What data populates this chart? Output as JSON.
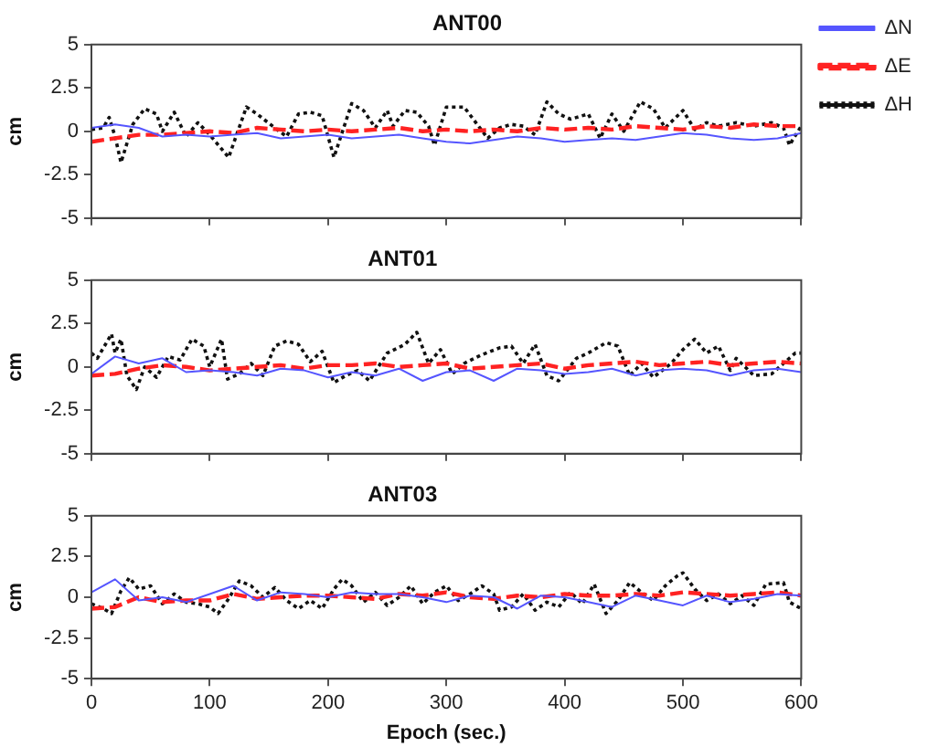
{
  "chart_data": [
    {
      "type": "line",
      "title": "ANT00",
      "ylabel": "cm",
      "xlim": [
        0,
        600
      ],
      "ylim": [
        -5,
        5
      ],
      "xticks": [
        0,
        100,
        200,
        300,
        400,
        500,
        600
      ],
      "yticks": [
        -5,
        -2.5,
        0,
        2.5,
        5
      ],
      "tick_labels": "y",
      "grid": false,
      "legend": "right",
      "marker": "none",
      "x": [
        0,
        20,
        40,
        60,
        80,
        100,
        120,
        140,
        160,
        180,
        200,
        220,
        240,
        260,
        280,
        300,
        320,
        340,
        360,
        380,
        400,
        420,
        440,
        460,
        480,
        500,
        520,
        540,
        560,
        580,
        600
      ],
      "series": [
        {
          "name": "ΔN",
          "color": "#5555ff",
          "line_style": "solid",
          "values": [
            0.2,
            0.4,
            0.2,
            -0.3,
            -0.2,
            -0.3,
            -0.2,
            -0.1,
            -0.4,
            -0.3,
            -0.2,
            -0.4,
            -0.3,
            -0.2,
            -0.4,
            -0.6,
            -0.7,
            -0.5,
            -0.3,
            -0.4,
            -0.6,
            -0.5,
            -0.4,
            -0.5,
            -0.3,
            -0.1,
            -0.2,
            -0.4,
            -0.5,
            -0.4,
            -0.1
          ]
        },
        {
          "name": "ΔE",
          "color": "#ff2222",
          "line_style": "dashed",
          "values": [
            -0.6,
            -0.4,
            -0.2,
            -0.2,
            -0.1,
            0.0,
            -0.1,
            0.2,
            0.1,
            0.0,
            0.1,
            0.0,
            0.1,
            0.2,
            0.0,
            0.1,
            0.0,
            0.1,
            0.0,
            0.2,
            0.1,
            0.2,
            0.1,
            0.3,
            0.2,
            0.1,
            0.3,
            0.2,
            0.4,
            0.3,
            0.3
          ]
        },
        {
          "name": "ΔH",
          "color": "#111111",
          "line_style": "dotted",
          "x": [
            0,
            10,
            15,
            20,
            25,
            35,
            45,
            55,
            60,
            70,
            80,
            90,
            100,
            116,
            131,
            140,
            155,
            165,
            175,
            185,
            195,
            200,
            205,
            220,
            230,
            240,
            250,
            255,
            265,
            275,
            285,
            290,
            300,
            315,
            325,
            335,
            345,
            355,
            365,
            375,
            385,
            395,
            405,
            420,
            430,
            440,
            450,
            464,
            475,
            485,
            500,
            510,
            520,
            530,
            545,
            560,
            575,
            585,
            590,
            600
          ],
          "values": [
            0.1,
            0.2,
            0.8,
            -0.3,
            -1.8,
            0.4,
            1.3,
            1.0,
            0.0,
            1.1,
            -0.3,
            0.5,
            -0.2,
            -1.5,
            1.4,
            1.0,
            0.2,
            -0.3,
            1.0,
            1.1,
            0.9,
            -0.3,
            -1.5,
            1.6,
            1.2,
            0.2,
            1.2,
            0.3,
            1.2,
            1.1,
            0.3,
            -0.8,
            1.4,
            1.4,
            0.5,
            -0.4,
            0.2,
            0.4,
            0.3,
            -0.2,
            1.7,
            1.0,
            0.7,
            1.0,
            -0.4,
            1.0,
            0.0,
            1.7,
            1.3,
            0.2,
            1.2,
            0.1,
            0.5,
            0.3,
            0.5,
            0.3,
            0.5,
            0.2,
            -0.8,
            0.3
          ]
        }
      ]
    },
    {
      "type": "line",
      "title": "ANT01",
      "ylabel": "cm",
      "xlim": [
        0,
        600
      ],
      "ylim": [
        -5,
        5
      ],
      "xticks": [
        0,
        100,
        200,
        300,
        400,
        500,
        600
      ],
      "yticks": [
        -5,
        -2.5,
        0,
        2.5,
        5
      ],
      "tick_labels": "y",
      "grid": false,
      "marker": "none",
      "x": [
        0,
        20,
        40,
        60,
        80,
        100,
        120,
        140,
        160,
        180,
        200,
        220,
        240,
        260,
        280,
        300,
        320,
        340,
        360,
        380,
        400,
        420,
        440,
        460,
        480,
        500,
        520,
        540,
        560,
        580,
        600
      ],
      "series": [
        {
          "color": "#5555ff",
          "line_style": "solid",
          "values": [
            -0.4,
            0.6,
            0.2,
            0.5,
            -0.3,
            -0.2,
            -0.3,
            -0.5,
            -0.1,
            -0.2,
            -0.6,
            -0.3,
            -0.5,
            -0.1,
            -0.8,
            -0.3,
            -0.2,
            -0.8,
            -0.1,
            -0.2,
            -0.4,
            -0.3,
            -0.1,
            -0.5,
            -0.2,
            -0.1,
            -0.2,
            -0.5,
            -0.2,
            -0.1,
            -0.3
          ]
        },
        {
          "color": "#ff2222",
          "line_style": "dashed",
          "values": [
            -0.5,
            -0.4,
            -0.1,
            0.1,
            0.0,
            -0.2,
            -0.1,
            0.0,
            0.1,
            -0.1,
            0.1,
            0.1,
            0.2,
            0.0,
            0.1,
            0.2,
            -0.1,
            0.0,
            0.1,
            0.2,
            -0.1,
            0.1,
            0.2,
            0.3,
            0.1,
            0.2,
            0.3,
            0.1,
            0.2,
            0.3,
            0.2
          ]
        },
        {
          "color": "#111111",
          "line_style": "dotted",
          "x": [
            0,
            5,
            17,
            20,
            25,
            30,
            38,
            45,
            55,
            65,
            75,
            85,
            95,
            100,
            110,
            115,
            125,
            135,
            145,
            155,
            165,
            175,
            185,
            195,
            205,
            215,
            225,
            235,
            250,
            265,
            275,
            285,
            295,
            305,
            315,
            330,
            345,
            355,
            365,
            375,
            385,
            395,
            410,
            420,
            435,
            445,
            455,
            465,
            475,
            490,
            500,
            510,
            520,
            530,
            540,
            545,
            560,
            575,
            585,
            595,
            600
          ],
          "values": [
            0.8,
            0.5,
            1.9,
            0.8,
            1.6,
            -0.5,
            -1.3,
            0.0,
            -0.6,
            0.6,
            0.4,
            1.6,
            1.2,
            0.0,
            1.6,
            -0.7,
            -0.4,
            0.2,
            -0.5,
            1.2,
            1.5,
            1.3,
            0.3,
            0.9,
            -0.9,
            -0.5,
            -0.2,
            -0.8,
            0.8,
            1.3,
            2.0,
            0.2,
            1.0,
            -0.4,
            0.2,
            0.7,
            1.1,
            1.2,
            0.2,
            1.3,
            -0.5,
            -0.8,
            0.5,
            0.8,
            1.4,
            1.2,
            -0.5,
            0.2,
            -0.6,
            0.2,
            1.0,
            1.6,
            0.8,
            1.2,
            -0.2,
            0.5,
            -0.5,
            -0.4,
            0.2,
            0.8,
            0.8
          ]
        }
      ]
    },
    {
      "type": "line",
      "title": "ANT03",
      "xlabel": "Epoch (sec.)",
      "ylabel": "cm",
      "xlim": [
        0,
        600
      ],
      "ylim": [
        -5,
        5
      ],
      "xticks": [
        0,
        100,
        200,
        300,
        400,
        500,
        600
      ],
      "yticks": [
        -5,
        -2.5,
        0,
        2.5,
        5
      ],
      "grid": false,
      "marker": "none",
      "x": [
        0,
        20,
        40,
        60,
        80,
        100,
        120,
        140,
        160,
        180,
        200,
        220,
        240,
        260,
        280,
        300,
        320,
        340,
        360,
        380,
        400,
        420,
        440,
        460,
        480,
        500,
        520,
        540,
        560,
        580,
        600
      ],
      "series": [
        {
          "color": "#5555ff",
          "line_style": "solid",
          "values": [
            0.3,
            1.1,
            -0.2,
            0.0,
            -0.3,
            0.2,
            0.7,
            -0.2,
            0.3,
            0.2,
            0.0,
            0.3,
            0.2,
            0.2,
            0.0,
            -0.3,
            0.1,
            0.0,
            -0.7,
            0.1,
            0.0,
            -0.3,
            -0.6,
            0.1,
            -0.2,
            -0.5,
            0.1,
            -0.3,
            -0.1,
            0.2,
            0.1
          ]
        },
        {
          "color": "#ff2222",
          "line_style": "dashed",
          "values": [
            -0.7,
            -0.6,
            0.0,
            -0.3,
            -0.2,
            -0.2,
            0.2,
            -0.1,
            0.0,
            0.1,
            0.1,
            0.0,
            -0.1,
            0.2,
            0.1,
            0.3,
            0.0,
            -0.1,
            0.1,
            0.0,
            0.2,
            0.1,
            0.1,
            0.2,
            0.1,
            0.3,
            0.2,
            0.1,
            0.2,
            0.3,
            0.1
          ]
        },
        {
          "color": "#111111",
          "line_style": "dotted",
          "x": [
            0,
            10,
            17,
            25,
            32,
            40,
            50,
            60,
            70,
            80,
            90,
            100,
            107,
            115,
            125,
            135,
            145,
            155,
            165,
            175,
            185,
            195,
            205,
            212,
            220,
            230,
            240,
            250,
            260,
            270,
            280,
            290,
            300,
            310,
            320,
            330,
            340,
            345,
            355,
            365,
            375,
            385,
            395,
            405,
            415,
            425,
            435,
            445,
            455,
            465,
            475,
            485,
            495,
            500,
            510,
            520,
            530,
            540,
            550,
            560,
            570,
            585,
            590,
            600
          ],
          "values": [
            -0.4,
            -0.7,
            -1.0,
            0.4,
            1.2,
            0.5,
            0.7,
            -0.4,
            0.2,
            -0.3,
            -0.4,
            -0.6,
            -1.0,
            -0.2,
            1.0,
            0.7,
            0.0,
            0.6,
            -0.2,
            -0.7,
            -0.2,
            -0.7,
            0.5,
            1.1,
            0.7,
            -0.3,
            0.3,
            -0.5,
            0.0,
            0.7,
            -0.4,
            0.3,
            0.7,
            -0.2,
            0.2,
            0.7,
            0.2,
            -0.8,
            -0.6,
            0.2,
            -0.8,
            -0.3,
            -0.6,
            0.3,
            -0.4,
            0.8,
            -1.0,
            -0.2,
            0.9,
            0.3,
            -0.2,
            0.7,
            1.3,
            1.5,
            0.5,
            -0.2,
            0.2,
            -0.4,
            0.1,
            -0.5,
            0.8,
            0.9,
            -0.3,
            -0.7
          ]
        }
      ]
    }
  ]
}
